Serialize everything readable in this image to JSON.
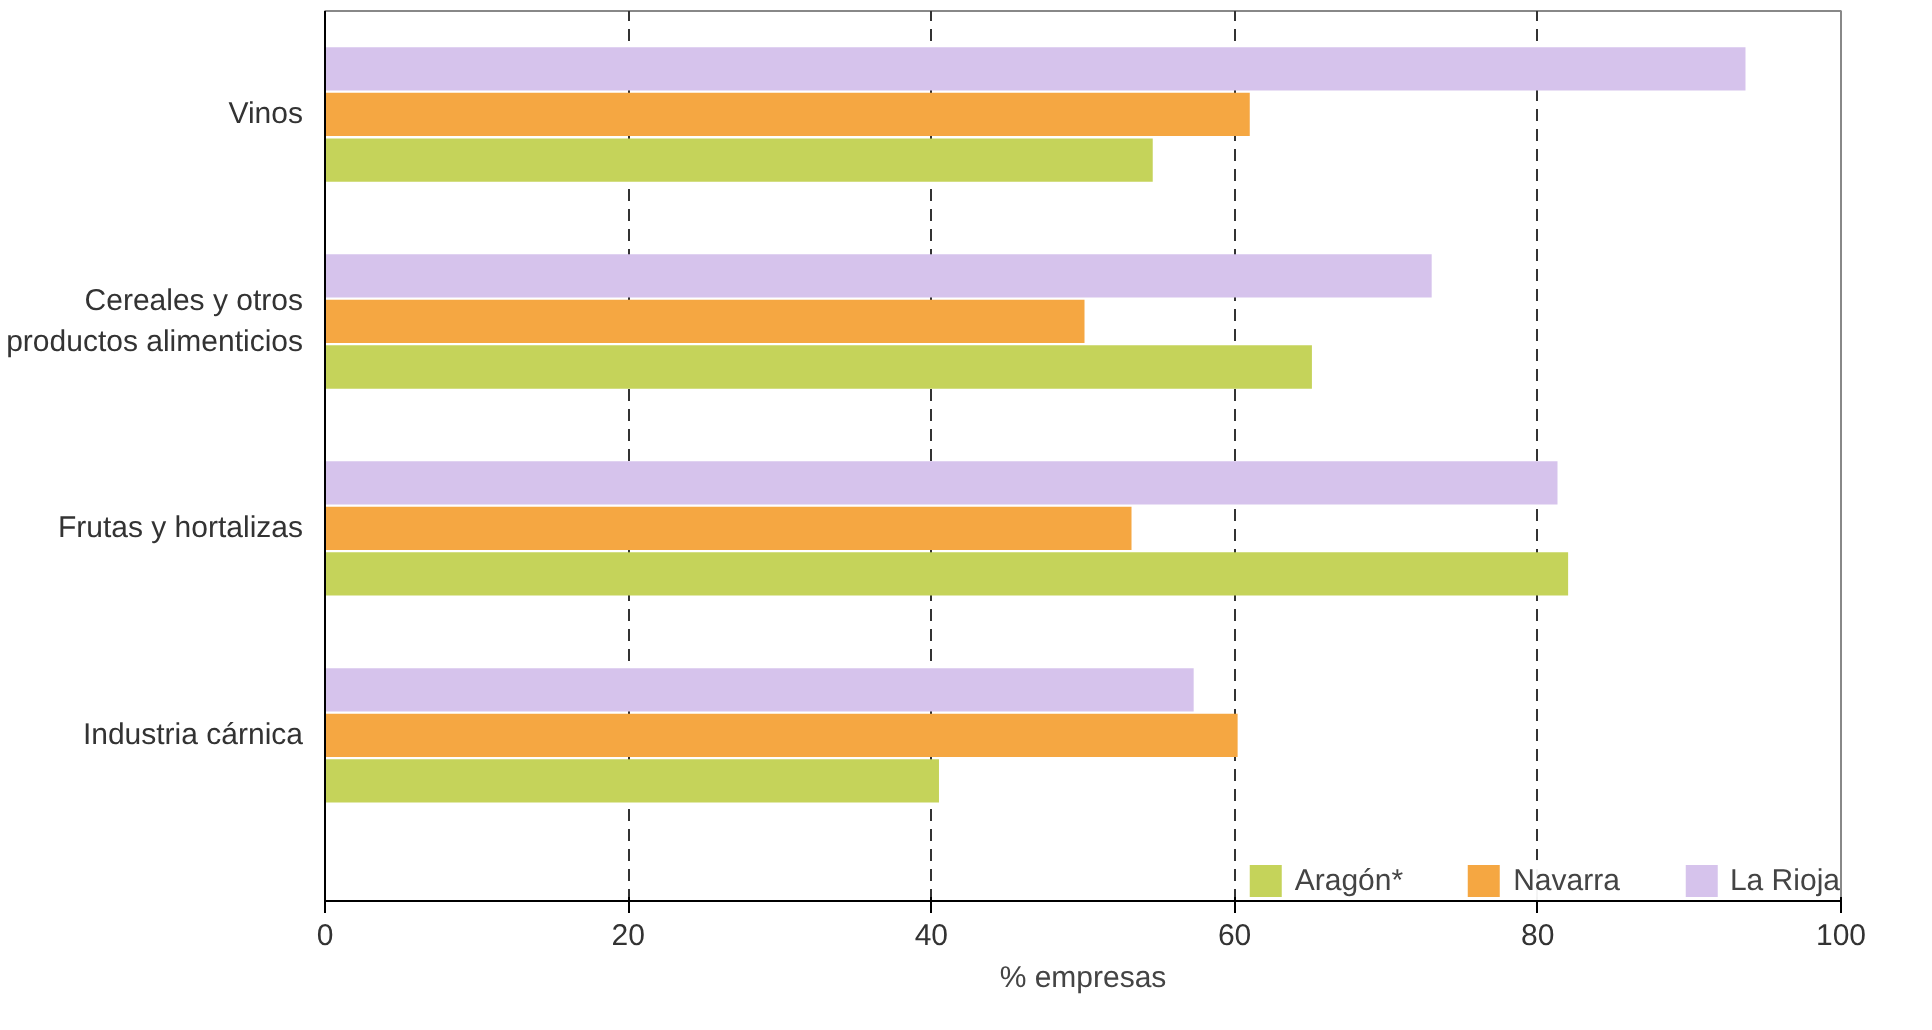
{
  "chart_data": {
    "type": "bar",
    "orientation": "horizontal",
    "xlabel": "% empresas",
    "categories": [
      "Vinos",
      "Cereales y otros productos alimenticios",
      "Frutas y hortalizas",
      "Industria cárnica"
    ],
    "series": [
      {
        "name": "Aragón*",
        "color": "#c5d35a",
        "values": [
          54.6,
          65.1,
          82.0,
          40.5
        ]
      },
      {
        "name": "Navarra",
        "color": "#f5a742",
        "values": [
          61.0,
          50.1,
          53.2,
          60.2
        ]
      },
      {
        "name": "La Rioja",
        "color": "#d6c3ec",
        "values": [
          93.7,
          73.0,
          81.3,
          57.3
        ]
      }
    ],
    "xlim": [
      0,
      100
    ],
    "xticks": [
      0,
      20,
      40,
      60,
      80,
      100
    ],
    "grid": "x",
    "legend": "bottom right"
  }
}
